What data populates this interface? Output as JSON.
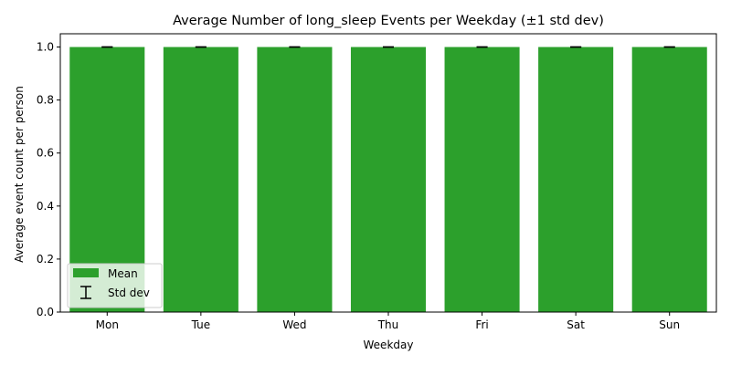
{
  "chart_data": {
    "type": "bar",
    "title": "Average Number of long_sleep Events per Weekday (±1 std dev)",
    "xlabel": "Weekday",
    "ylabel": "Average event count per person",
    "categories": [
      "Mon",
      "Tue",
      "Wed",
      "Thu",
      "Fri",
      "Sat",
      "Sun"
    ],
    "values": [
      1.0,
      1.0,
      1.0,
      1.0,
      1.0,
      1.0,
      1.0
    ],
    "std": [
      0.0,
      0.0,
      0.0,
      0.0,
      0.0,
      0.0,
      0.0
    ],
    "ylim": [
      0,
      1.05
    ],
    "yticks": [
      "0.0",
      "0.2",
      "0.4",
      "0.6",
      "0.8",
      "1.0"
    ],
    "grid": false,
    "legend": {
      "placement": "lower-left",
      "entries": [
        "Mean",
        "Std dev"
      ]
    },
    "colors": {
      "bar": "#2ca02c",
      "errorbar": "#000000"
    }
  }
}
